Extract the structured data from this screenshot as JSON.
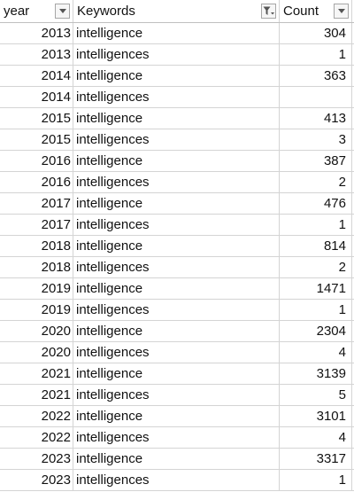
{
  "header": {
    "year": "year",
    "keywords": "Keywords",
    "count": "Count",
    "keywords_filter_icon": "filter-applied-icon",
    "dropdown_icon": "dropdown-arrow-icon"
  },
  "rows": [
    {
      "year": "2013",
      "keyword": "intelligence",
      "count": "304"
    },
    {
      "year": "2013",
      "keyword": "intelligences",
      "count": "1"
    },
    {
      "year": "2014",
      "keyword": "intelligence",
      "count": "363"
    },
    {
      "year": "2014",
      "keyword": "intelligences",
      "count": ""
    },
    {
      "year": "2015",
      "keyword": "intelligence",
      "count": "413"
    },
    {
      "year": "2015",
      "keyword": "intelligences",
      "count": "3"
    },
    {
      "year": "2016",
      "keyword": "intelligence",
      "count": "387"
    },
    {
      "year": "2016",
      "keyword": "intelligences",
      "count": "2"
    },
    {
      "year": "2017",
      "keyword": "intelligence",
      "count": "476"
    },
    {
      "year": "2017",
      "keyword": "intelligences",
      "count": "1"
    },
    {
      "year": "2018",
      "keyword": "intelligence",
      "count": "814"
    },
    {
      "year": "2018",
      "keyword": "intelligences",
      "count": "2"
    },
    {
      "year": "2019",
      "keyword": "intelligence",
      "count": "1471"
    },
    {
      "year": "2019",
      "keyword": "intelligences",
      "count": "1"
    },
    {
      "year": "2020",
      "keyword": "intelligence",
      "count": "2304"
    },
    {
      "year": "2020",
      "keyword": "intelligences",
      "count": "4"
    },
    {
      "year": "2021",
      "keyword": "intelligence",
      "count": "3139"
    },
    {
      "year": "2021",
      "keyword": "intelligences",
      "count": "5"
    },
    {
      "year": "2022",
      "keyword": "intelligence",
      "count": "3101"
    },
    {
      "year": "2022",
      "keyword": "intelligences",
      "count": "4"
    },
    {
      "year": "2023",
      "keyword": "intelligence",
      "count": "3317"
    },
    {
      "year": "2023",
      "keyword": "intelligences",
      "count": "1"
    }
  ]
}
